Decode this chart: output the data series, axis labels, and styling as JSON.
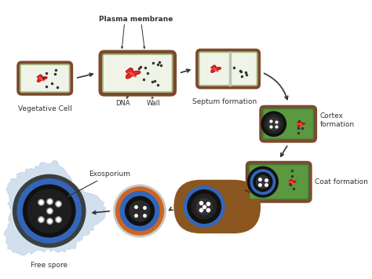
{
  "bg_color": "#ffffff",
  "cell_wall_color": "#7B4A2D",
  "cell_wall_outer": "#8B5A3D",
  "cell_inner_light": "#f0f4e8",
  "cell_inner_green_light": "#d0e8b0",
  "cell_inner_green": "#6aaa50",
  "dna_color": "#cc1111",
  "dot_color": "#222222",
  "septum_color": "#cccccc",
  "cortex_green": "#5a9940",
  "coat_brown": "#8B5520",
  "spore_black": "#111111",
  "spore_dark": "#333333",
  "spore_blue": "#3366bb",
  "spore_orange": "#cc6622",
  "spore_gray_light": "#c0c0c8",
  "exo_light_blue": "#ccdde8",
  "exo_dark_gray": "#404850",
  "arrow_color": "#333333",
  "label_color": "#333333",
  "labels": {
    "plasma_membrane": "Plasma membrane",
    "dna": "DNA",
    "wall": "Wall",
    "vegetative": "Vegetative Cell",
    "septum": "Septum formation",
    "cortex": "Cortex\nformation",
    "coat": "Coat formation",
    "exosporium": "Exosporium",
    "free_spore": "Free spore"
  }
}
